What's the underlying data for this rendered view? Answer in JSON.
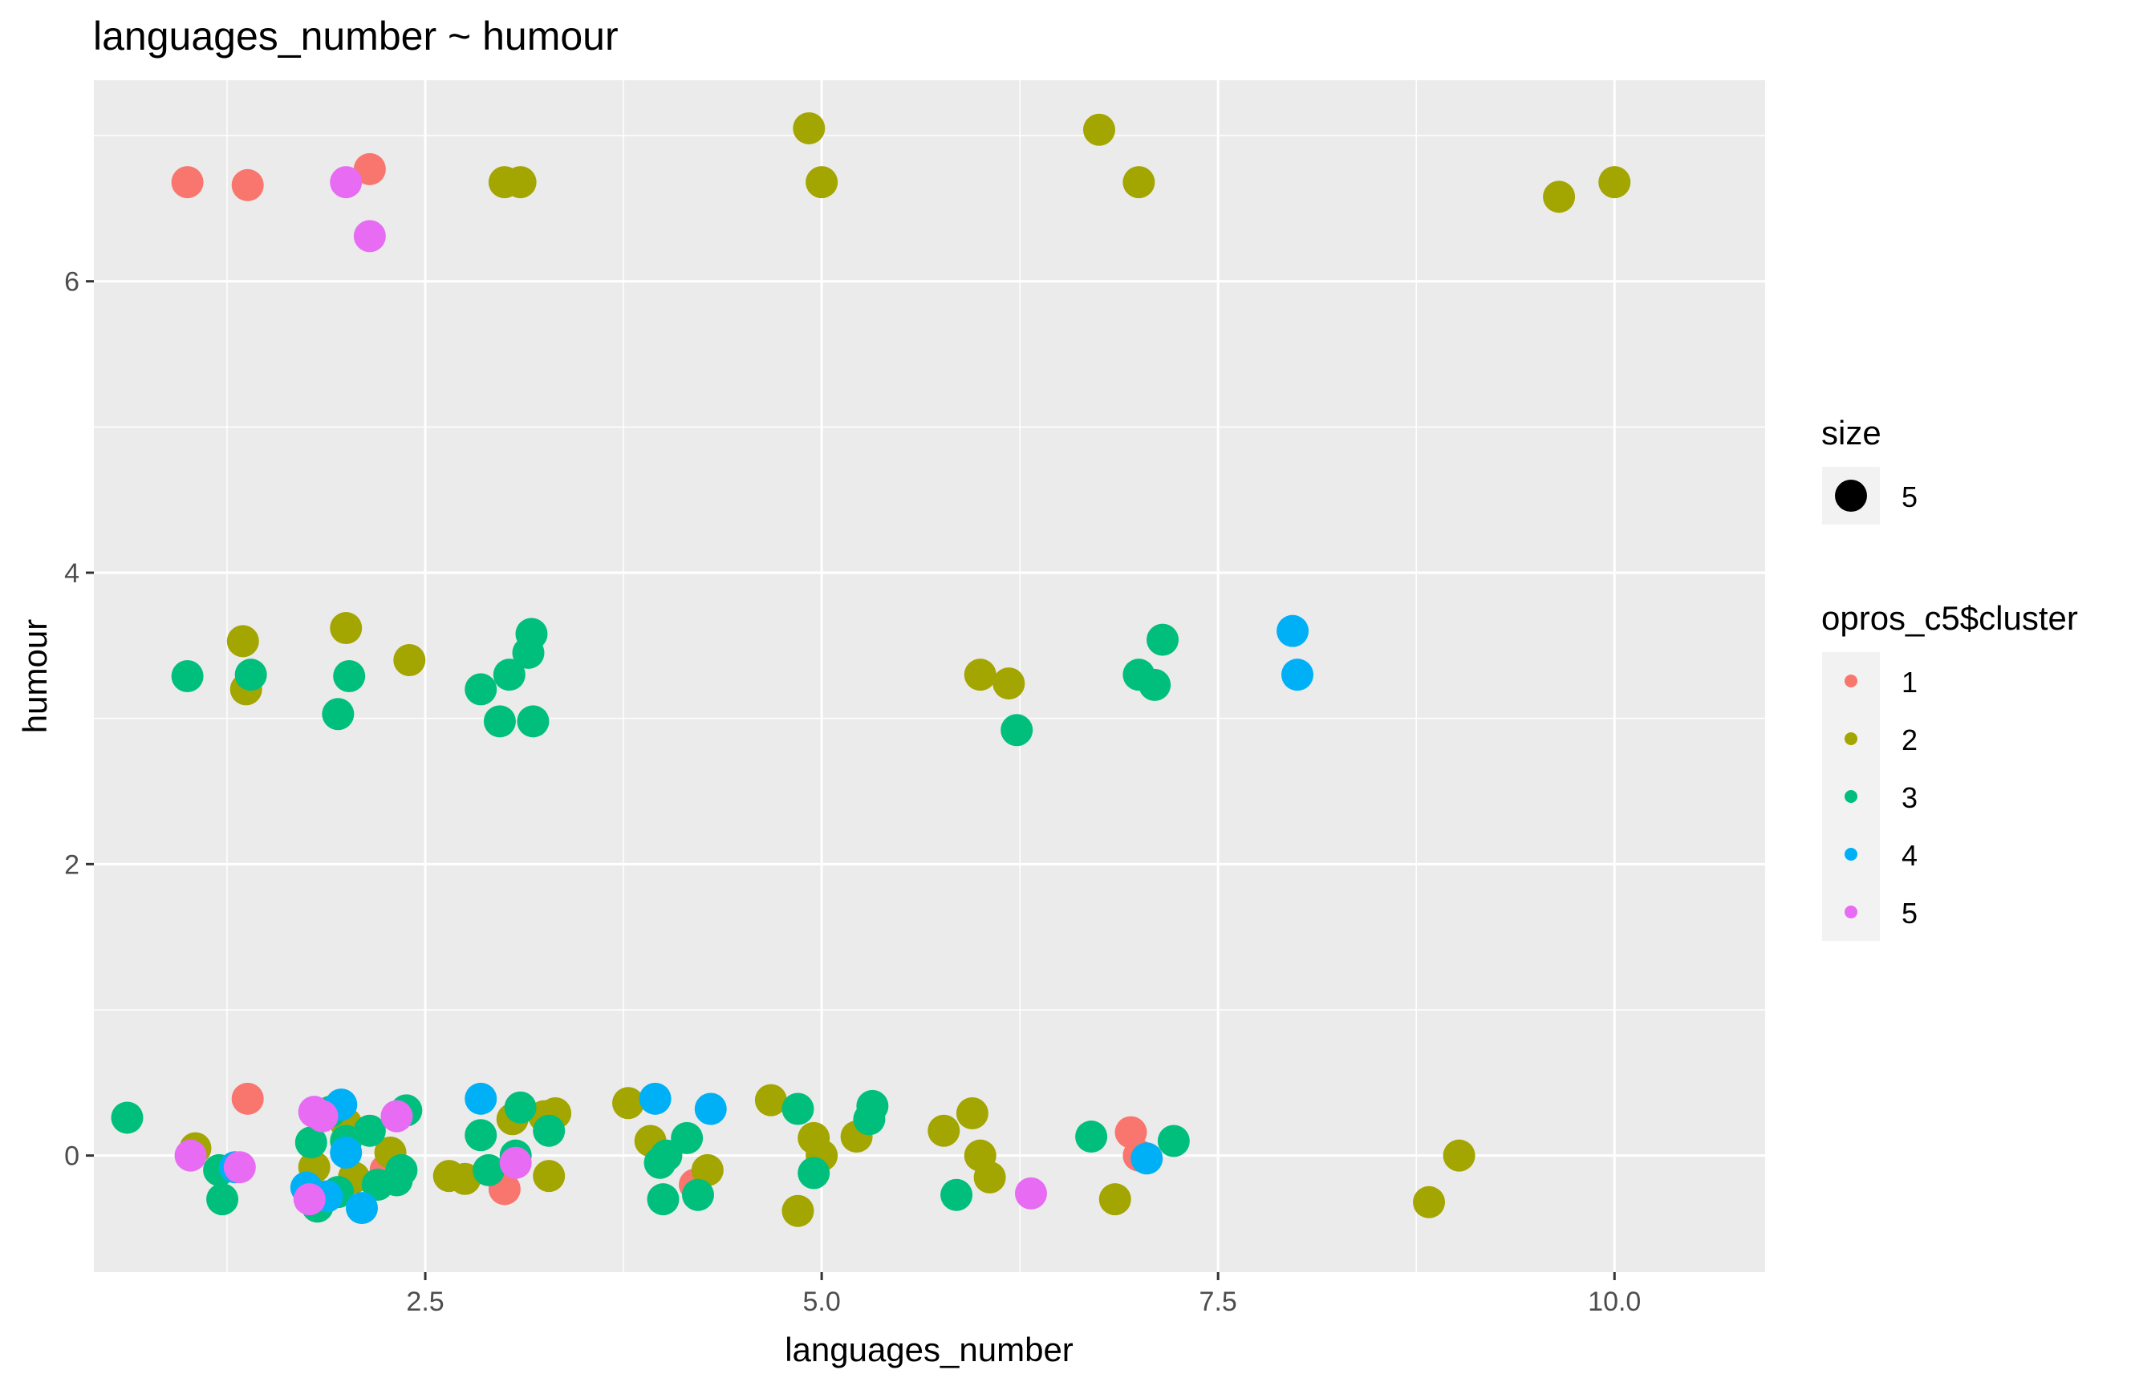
{
  "chart_data": {
    "type": "scatter",
    "title": "languages_number ~ humour",
    "xlabel": "languages_number",
    "ylabel": "humour",
    "xlim": [
      0.41,
      10.95
    ],
    "ylim": [
      -0.8,
      7.38
    ],
    "x_ticks": [
      2.5,
      5.0,
      7.5,
      10.0
    ],
    "x_tick_labels": [
      "2.5",
      "5.0",
      "7.5",
      "10.0"
    ],
    "y_ticks": [
      0,
      2,
      4,
      6
    ],
    "y_tick_labels": [
      "0",
      "2",
      "4",
      "6"
    ],
    "grid": true,
    "legend_position": "right",
    "size_legend": {
      "title": "size",
      "label": "5"
    },
    "color_legend": {
      "title": "opros_c5$cluster",
      "entries": [
        {
          "label": "1",
          "color": "#F8766D"
        },
        {
          "label": "2",
          "color": "#A3A500"
        },
        {
          "label": "3",
          "color": "#00BF7D"
        },
        {
          "label": "4",
          "color": "#00B0F6"
        },
        {
          "label": "5",
          "color": "#E76BF3"
        }
      ]
    },
    "series": [
      {
        "name": "1",
        "color": "#F8766D",
        "points": [
          [
            1.0,
            6.68
          ],
          [
            1.38,
            6.66
          ],
          [
            2.15,
            6.77
          ],
          [
            1.38,
            0.39
          ],
          [
            2.25,
            -0.1
          ],
          [
            3.0,
            -0.23
          ],
          [
            4.2,
            -0.2
          ],
          [
            6.95,
            0.16
          ],
          [
            7.0,
            0.0
          ]
        ]
      },
      {
        "name": "2",
        "color": "#A3A500",
        "points": [
          [
            3.0,
            6.68
          ],
          [
            3.1,
            6.68
          ],
          [
            4.92,
            7.05
          ],
          [
            5.0,
            6.68
          ],
          [
            6.75,
            7.04
          ],
          [
            7.0,
            6.68
          ],
          [
            9.65,
            6.58
          ],
          [
            10.0,
            6.68
          ],
          [
            1.35,
            3.53
          ],
          [
            1.37,
            3.2
          ],
          [
            2.0,
            3.62
          ],
          [
            2.4,
            3.4
          ],
          [
            6.0,
            3.3
          ],
          [
            6.18,
            3.24
          ],
          [
            1.05,
            0.05
          ],
          [
            1.8,
            -0.08
          ],
          [
            2.0,
            0.22
          ],
          [
            2.05,
            -0.15
          ],
          [
            2.28,
            0.02
          ],
          [
            2.65,
            -0.14
          ],
          [
            2.75,
            -0.16
          ],
          [
            3.05,
            0.25
          ],
          [
            3.25,
            0.27
          ],
          [
            3.32,
            0.29
          ],
          [
            3.28,
            -0.14
          ],
          [
            3.78,
            0.36
          ],
          [
            3.92,
            0.1
          ],
          [
            4.28,
            -0.1
          ],
          [
            4.68,
            0.38
          ],
          [
            4.85,
            -0.38
          ],
          [
            4.95,
            0.12
          ],
          [
            5.0,
            0.0
          ],
          [
            5.22,
            0.13
          ],
          [
            5.77,
            0.17
          ],
          [
            5.95,
            0.29
          ],
          [
            6.0,
            0.0
          ],
          [
            6.06,
            -0.15
          ],
          [
            6.85,
            -0.3
          ],
          [
            8.83,
            -0.32
          ],
          [
            9.02,
            0.0
          ]
        ]
      },
      {
        "name": "3",
        "color": "#00BF7D",
        "points": [
          [
            1.0,
            3.29
          ],
          [
            1.4,
            3.3
          ],
          [
            1.95,
            3.03
          ],
          [
            2.02,
            3.29
          ],
          [
            2.85,
            3.2
          ],
          [
            2.97,
            2.98
          ],
          [
            3.03,
            3.3
          ],
          [
            3.15,
            3.45
          ],
          [
            3.17,
            3.58
          ],
          [
            3.18,
            2.98
          ],
          [
            6.23,
            2.92
          ],
          [
            7.0,
            3.3
          ],
          [
            7.1,
            3.23
          ],
          [
            7.15,
            3.54
          ],
          [
            0.62,
            0.26
          ],
          [
            1.2,
            -0.1
          ],
          [
            1.22,
            -0.3
          ],
          [
            1.78,
            0.09
          ],
          [
            1.82,
            -0.35
          ],
          [
            1.9,
            0.3
          ],
          [
            1.95,
            -0.25
          ],
          [
            2.0,
            0.1
          ],
          [
            2.15,
            0.17
          ],
          [
            2.2,
            -0.2
          ],
          [
            2.32,
            -0.17
          ],
          [
            2.35,
            -0.1
          ],
          [
            2.38,
            0.31
          ],
          [
            2.85,
            0.14
          ],
          [
            2.9,
            -0.1
          ],
          [
            3.07,
            0.0
          ],
          [
            3.1,
            0.33
          ],
          [
            3.28,
            0.17
          ],
          [
            3.98,
            -0.05
          ],
          [
            4.0,
            -0.3
          ],
          [
            4.02,
            0.0
          ],
          [
            4.15,
            0.12
          ],
          [
            4.22,
            -0.27
          ],
          [
            4.85,
            0.32
          ],
          [
            4.95,
            -0.12
          ],
          [
            5.3,
            0.25
          ],
          [
            5.32,
            0.34
          ],
          [
            5.85,
            -0.27
          ],
          [
            6.7,
            0.13
          ],
          [
            7.22,
            0.1
          ]
        ]
      },
      {
        "name": "4",
        "color": "#00B0F6",
        "points": [
          [
            7.97,
            3.6
          ],
          [
            8.0,
            3.3
          ],
          [
            1.3,
            -0.08
          ],
          [
            1.75,
            -0.22
          ],
          [
            1.88,
            -0.28
          ],
          [
            1.97,
            0.35
          ],
          [
            2.0,
            0.02
          ],
          [
            2.1,
            -0.36
          ],
          [
            2.85,
            0.39
          ],
          [
            3.95,
            0.39
          ],
          [
            4.3,
            0.32
          ],
          [
            7.05,
            -0.02
          ]
        ]
      },
      {
        "name": "5",
        "color": "#E76BF3",
        "points": [
          [
            2.0,
            6.68
          ],
          [
            2.15,
            6.31
          ],
          [
            1.02,
            0.0
          ],
          [
            1.33,
            -0.08
          ],
          [
            1.77,
            -0.3
          ],
          [
            1.8,
            0.3
          ],
          [
            1.85,
            0.27
          ],
          [
            2.32,
            0.27
          ],
          [
            3.07,
            -0.05
          ],
          [
            6.32,
            -0.26
          ]
        ]
      }
    ]
  }
}
